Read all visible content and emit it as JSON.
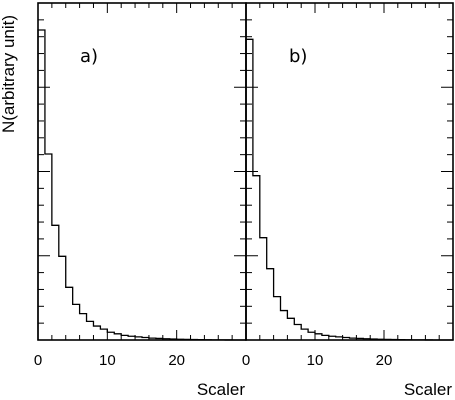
{
  "chart_data": [
    {
      "type": "histogram",
      "panel_label": "a)",
      "xlabel": "Scaler",
      "ylabel": "N(arbitrary unit)",
      "xlim": [
        0,
        30
      ],
      "x_ticks": [
        "0",
        "10",
        "20"
      ],
      "bin_width": 1,
      "values": [
        100,
        60,
        37,
        27,
        17,
        11.5,
        8.5,
        6,
        4.5,
        3.5,
        2.5,
        2,
        1.5,
        1.2,
        1,
        0.8,
        0.6,
        0.5,
        0.4,
        0.3,
        0.25,
        0.2,
        0.15,
        0.1,
        0.08,
        0.05,
        0.03,
        0.02,
        0.01,
        0.01
      ]
    },
    {
      "type": "histogram",
      "panel_label": "b)",
      "xlabel": "Scaler",
      "ylabel": "",
      "xlim": [
        0,
        30
      ],
      "x_ticks": [
        "0",
        "10",
        "20"
      ],
      "bin_width": 1,
      "values": [
        97,
        53,
        33,
        23,
        14,
        9.5,
        7,
        5,
        3.5,
        2.5,
        2,
        1.5,
        1.2,
        1,
        0.8,
        0.6,
        0.5,
        0.4,
        0.3,
        0.25,
        0.2,
        0.15,
        0.1,
        0.08,
        0.05,
        0.03,
        0.02,
        0.01,
        0.01,
        0.01
      ]
    }
  ]
}
